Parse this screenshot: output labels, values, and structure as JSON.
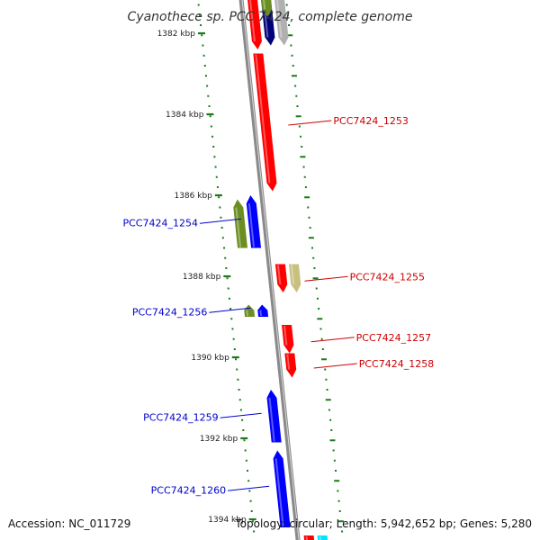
{
  "title": "Cyanothece sp. PCC 7424, complete genome",
  "footer": {
    "accession": "Accession: NC_011729",
    "summary": "Topology: circular; Length: 5,942,652 bp; Genes: 5,280"
  },
  "colors": {
    "backbone": "#8a8a8a",
    "tick": "#1a7a1a",
    "forward_label": "#cc0000",
    "reverse_label": "#0000cc",
    "red": "#ff0000",
    "blue": "#0000ff",
    "olive": "#6b8e23",
    "khaki": "#c8c080",
    "navy": "#00007a",
    "gray": "#b0b0b0",
    "cyan": "#00e5ff"
  },
  "map_data": {
    "type": "linear-genome-segment",
    "unit": "kbp",
    "visible_range": [
      1381.3,
      1394.4
    ],
    "ticks": [
      {
        "value": 1382,
        "label": "1382 kbp"
      },
      {
        "value": 1384,
        "label": "1384 kbp"
      },
      {
        "value": 1386,
        "label": "1386 kbp"
      },
      {
        "value": 1388,
        "label": "1388 kbp"
      },
      {
        "value": 1390,
        "label": "1390 kbp"
      },
      {
        "value": 1392,
        "label": "1392 kbp"
      },
      {
        "value": 1394,
        "label": "1394 kbp"
      }
    ],
    "genes": [
      {
        "start": 1381.0,
        "end": 1382.4,
        "strand": "+",
        "color": "red",
        "lane": 0
      },
      {
        "start": 1381.0,
        "end": 1382.3,
        "strand": "+",
        "color": "navy",
        "lane": 1
      },
      {
        "start": 1381.0,
        "end": 1382.3,
        "strand": "+",
        "color": "gray",
        "lane": 2
      },
      {
        "start": 1381.0,
        "end": 1381.6,
        "strand": "+",
        "color": "olive",
        "lane": 1
      },
      {
        "start": 1382.5,
        "end": 1385.9,
        "strand": "+",
        "color": "red",
        "lane": 0,
        "label": "PCC7424_1253"
      },
      {
        "start": 1386.1,
        "end": 1387.3,
        "strand": "-",
        "color": "olive",
        "lane": 1
      },
      {
        "start": 1386.0,
        "end": 1387.3,
        "strand": "-",
        "color": "blue",
        "lane": 0,
        "label": "PCC7424_1254"
      },
      {
        "start": 1387.7,
        "end": 1388.4,
        "strand": "+",
        "color": "red",
        "lane": 0,
        "label": "PCC7424_1255"
      },
      {
        "start": 1387.7,
        "end": 1388.4,
        "strand": "+",
        "color": "khaki",
        "lane": 1
      },
      {
        "start": 1388.7,
        "end": 1389.0,
        "strand": "-",
        "color": "olive",
        "lane": 1
      },
      {
        "start": 1388.7,
        "end": 1389.0,
        "strand": "-",
        "color": "blue",
        "lane": 0,
        "label": "PCC7424_1256"
      },
      {
        "start": 1389.2,
        "end": 1389.9,
        "strand": "+",
        "color": "red",
        "lane": 0,
        "label": "PCC7424_1257"
      },
      {
        "start": 1389.9,
        "end": 1390.5,
        "strand": "+",
        "color": "red",
        "lane": 0,
        "label": "PCC7424_1258"
      },
      {
        "start": 1390.8,
        "end": 1392.1,
        "strand": "-",
        "color": "blue",
        "lane": 0,
        "label": "PCC7424_1259"
      },
      {
        "start": 1392.3,
        "end": 1394.2,
        "strand": "-",
        "color": "blue",
        "lane": 0,
        "label": "PCC7424_1260"
      },
      {
        "start": 1394.4,
        "end": 1395.0,
        "strand": "+",
        "color": "red",
        "lane": 0
      },
      {
        "start": 1394.4,
        "end": 1395.0,
        "strand": "+",
        "color": "cyan",
        "lane": 1
      }
    ]
  }
}
